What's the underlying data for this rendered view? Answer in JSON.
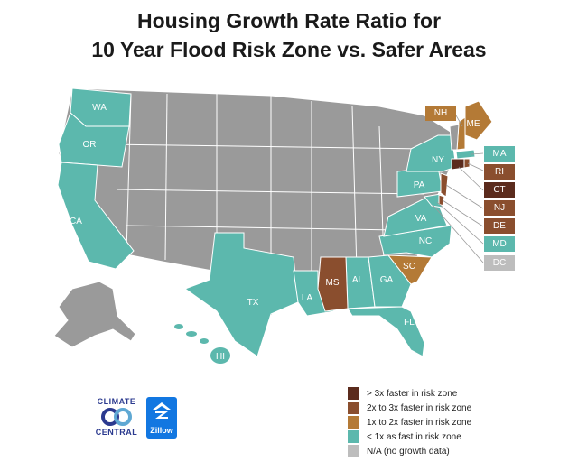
{
  "title_line1": "Housing Growth Rate Ratio for",
  "title_line2": "10 Year Flood Risk Zone vs. Safer Areas",
  "colors": {
    "gt3x": "#5b2b1d",
    "2to3x": "#8a4e2e",
    "1to2x": "#b47a36",
    "lt1x": "#5cb8ad",
    "na": "#bdbdbd",
    "other": "#9a9a9a"
  },
  "state_labels": {
    "WA": "WA",
    "OR": "OR",
    "CA": "CA",
    "TX": "TX",
    "LA": "LA",
    "MS": "MS",
    "AL": "AL",
    "GA": "GA",
    "FL": "FL",
    "SC": "SC",
    "NC": "NC",
    "VA": "VA",
    "PA": "PA",
    "NY": "NY",
    "ME": "ME",
    "HI": "HI"
  },
  "callouts": {
    "NH": "NH",
    "MA": "MA",
    "RI": "RI",
    "CT": "CT",
    "NJ": "NJ",
    "DE": "DE",
    "MD": "MD",
    "DC": "DC"
  },
  "legend": [
    {
      "label": "> 3x faster in risk zone",
      "color": "#5b2b1d"
    },
    {
      "label": "2x to 3x faster in risk zone",
      "color": "#8a4e2e"
    },
    {
      "label": "1x to 2x faster in risk zone",
      "color": "#b47a36"
    },
    {
      "label": "< 1x as fast in risk zone",
      "color": "#5cb8ad"
    },
    {
      "label": "N/A (no growth data)",
      "color": "#bdbdbd"
    }
  ],
  "logos": {
    "climate_central_line1": "CLIMATE",
    "climate_central_line2": "CENTRAL",
    "zillow": "Zillow"
  }
}
